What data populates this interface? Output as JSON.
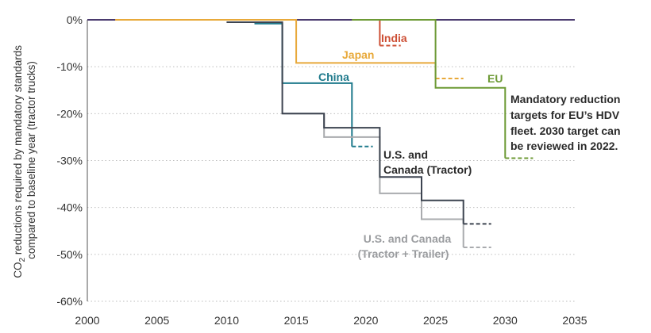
{
  "chart_data": {
    "type": "line",
    "step": true,
    "title": "",
    "xlabel": "",
    "ylabel": "CO₂ reductions required by mandatory standards compared to baseline year (tractor trucks)",
    "ylabel_line1": "CO",
    "ylabel_line1_sub": "2",
    "ylabel_line1_rest": " reductions required by mandatory standards",
    "ylabel_line2": "compared to baseline year (tractor trucks)",
    "xlim": [
      2000,
      2035
    ],
    "ylim": [
      -60,
      0
    ],
    "x_ticks": [
      2000,
      2005,
      2010,
      2015,
      2020,
      2025,
      2030,
      2035
    ],
    "x_tick_labels": [
      "2000",
      "2005",
      "2010",
      "2015",
      "2020",
      "2025",
      "2030",
      "2035"
    ],
    "y_ticks": [
      0,
      -10,
      -20,
      -30,
      -40,
      -50,
      -60
    ],
    "y_tick_labels": [
      "0%",
      "-10%",
      "-20%",
      "-30%",
      "-40%",
      "-50%",
      "-60%"
    ],
    "grid": "horizontal dotted",
    "series": [
      {
        "name": "Japan",
        "color": "#e8a93a",
        "points": [
          [
            2002,
            0
          ],
          [
            2015,
            0
          ],
          [
            2015,
            -9.2
          ],
          [
            2025,
            -9.2
          ],
          [
            2025,
            -12.5
          ]
        ],
        "projection": [
          [
            2025,
            -12.5
          ],
          [
            2027,
            -12.5
          ]
        ]
      },
      {
        "name": "India",
        "color": "#cd4f35",
        "points": [
          [
            2019,
            0
          ],
          [
            2021,
            0
          ],
          [
            2021,
            -5.5
          ]
        ],
        "projection": [
          [
            2021,
            -5.5
          ],
          [
            2022.5,
            -5.5
          ]
        ]
      },
      {
        "name": "EU",
        "color": "#6d9a35",
        "points": [
          [
            2019,
            0
          ],
          [
            2025,
            0
          ],
          [
            2025,
            -14.5
          ],
          [
            2030,
            -14.5
          ],
          [
            2030,
            -29.5
          ]
        ],
        "projection": [
          [
            2030,
            -29.5
          ],
          [
            2032,
            -29.5
          ]
        ]
      },
      {
        "name": "China",
        "color": "#1f7a8c",
        "points": [
          [
            2012,
            -0.8
          ],
          [
            2014,
            -0.8
          ],
          [
            2014,
            -13.5
          ],
          [
            2019,
            -13.5
          ],
          [
            2019,
            -27
          ]
        ],
        "projection": [
          [
            2019,
            -27
          ],
          [
            2020.5,
            -27
          ]
        ]
      },
      {
        "name": "U.S. and Canada (Tractor)",
        "name_line1": "U.S. and",
        "name_line2": "Canada (Tractor)",
        "color": "#3d4450",
        "points": [
          [
            2010,
            -0.5
          ],
          [
            2014,
            -0.5
          ],
          [
            2014,
            -20
          ],
          [
            2017,
            -20
          ],
          [
            2017,
            -23
          ],
          [
            2021,
            -23
          ],
          [
            2021,
            -33.5
          ],
          [
            2024,
            -33.5
          ],
          [
            2024,
            -38.5
          ],
          [
            2027,
            -38.5
          ],
          [
            2027,
            -43.5
          ]
        ],
        "projection": [
          [
            2027,
            -43.5
          ],
          [
            2029,
            -43.5
          ]
        ]
      },
      {
        "name": "U.S. and Canada (Tractor + Trailer)",
        "name_line1": "U.S. and Canada",
        "name_line2": "(Tractor + Trailer)",
        "color": "#a9abae",
        "points": [
          [
            2014,
            -20
          ],
          [
            2017,
            -20
          ],
          [
            2017,
            -25
          ],
          [
            2021,
            -25
          ],
          [
            2021,
            -37
          ],
          [
            2024,
            -37
          ],
          [
            2024,
            -42.5
          ],
          [
            2027,
            -42.5
          ],
          [
            2027,
            -48.5
          ]
        ],
        "projection": [
          [
            2027,
            -48.5
          ],
          [
            2029,
            -48.5
          ]
        ]
      },
      {
        "name": "",
        "color": "#4a3a6e",
        "points": [
          [
            2000,
            0
          ],
          [
            2035,
            0
          ]
        ],
        "projection": []
      }
    ],
    "annotations": {
      "eu_note": [
        "Mandatory reduction",
        "targets for EU’s HDV",
        "fleet. 2030 target can",
        "be reviewed in 2022."
      ]
    }
  }
}
